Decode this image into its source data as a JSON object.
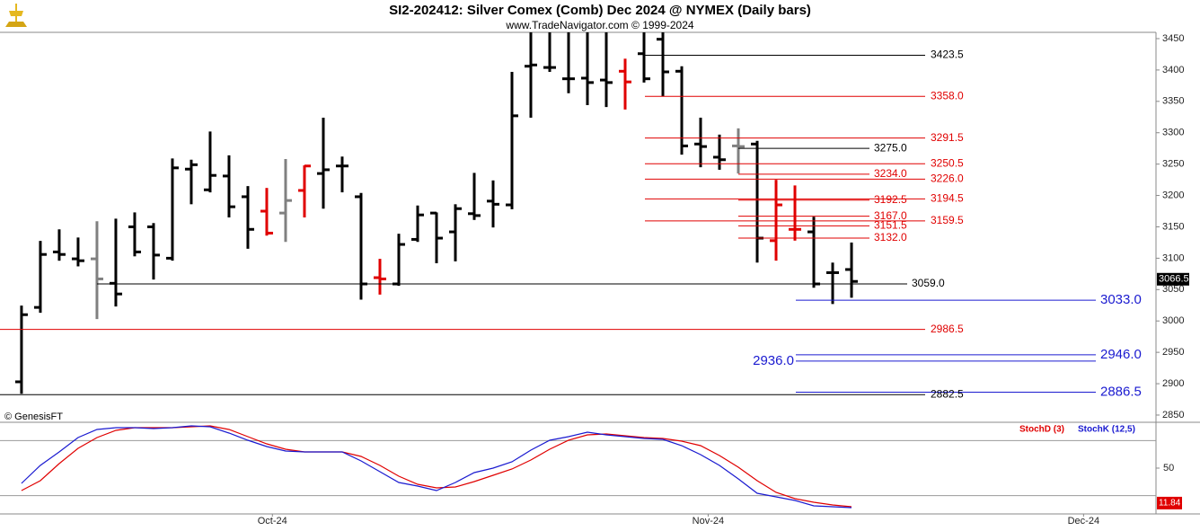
{
  "chart_data": [
    {
      "type": "ohlc",
      "title": "SI2-202412:  Silver Comex (Comb) Dec 2024 @ NYMEX  (Daily bars)",
      "subtitle": "www.TradeNavigator.com © 1999-2024",
      "watermark": "© GenesisFT",
      "xlim": [
        -1.14,
        60.14
      ],
      "ylim": [
        2838.5,
        3460
      ],
      "yticks": [
        2850,
        2900,
        2950,
        3000,
        3050,
        3100,
        3150,
        3200,
        3250,
        3300,
        3350,
        3400,
        3450
      ],
      "open": [
        2903,
        3021.6,
        3110,
        3099,
        3099,
        3060,
        3150,
        3150,
        3100,
        3242,
        3209,
        3231,
        3198,
        3175,
        3172,
        3208,
        3235,
        3247,
        3198,
        3069,
        3059,
        3130,
        3172,
        3142,
        3171,
        3191,
        3185,
        3406,
        3404,
        3386,
        3387,
        3384,
        3398,
        3426,
        3449,
        3398,
        3282,
        3261,
        3279,
        3282,
        3128,
        3146,
        3142,
        3077,
        3082
      ],
      "high": [
        3024.5,
        3127.6,
        3146,
        3133,
        3159,
        3163,
        3173,
        3156,
        3259,
        3257,
        3302,
        3264,
        3215,
        3212,
        3258,
        3248,
        3324,
        3262,
        3204,
        3099,
        3139,
        3184,
        3173,
        3186,
        3236,
        3224,
        3397,
        3460,
        3460,
        3460,
        3460,
        3460,
        3418,
        3460,
        3460,
        3406,
        3324,
        3297,
        3307,
        3287,
        3225,
        3216,
        3166,
        3093,
        3125
      ],
      "low": [
        2884,
        3013,
        3096,
        3087,
        3003,
        3023,
        3103,
        3066,
        3096,
        3186,
        3205,
        3165,
        3115,
        3136,
        3126,
        3165,
        3179,
        3205,
        3034,
        3042,
        3056,
        3126,
        3092,
        3095,
        3161,
        3149,
        3178,
        3324,
        3397,
        3363,
        3344,
        3341,
        3337,
        3380,
        3358,
        3265,
        3245,
        3241,
        3235,
        3093,
        3096,
        3128,
        3053,
        3027,
        3037
      ],
      "close": [
        3010,
        3106,
        3106,
        3096,
        3067,
        3043,
        3110,
        3105,
        3244,
        3249,
        3232,
        3182,
        3146,
        3140,
        3192,
        3247,
        3241,
        3247,
        3059,
        3067,
        3122,
        3169,
        3132,
        3179,
        3168,
        3186,
        3327,
        3408,
        3404,
        3386,
        3380,
        3380,
        3381,
        3386,
        3397,
        3279,
        3278,
        3257,
        3278,
        3132,
        3185,
        3146,
        3059,
        3077,
        3063
      ],
      "colors": [
        "#000",
        "#000",
        "#000",
        "#000",
        "#808080",
        "#000",
        "#000",
        "#000",
        "#000",
        "#000",
        "#000",
        "#000",
        "#000",
        "#e00000",
        "#808080",
        "#e00000",
        "#000",
        "#000",
        "#000",
        "#e00000",
        "#000",
        "#000",
        "#000",
        "#000",
        "#000",
        "#000",
        "#000",
        "#000",
        "#000",
        "#000",
        "#000",
        "#000",
        "#e00000",
        "#000",
        "#000",
        "#000",
        "#000",
        "#000",
        "#808080",
        "#000",
        "#e00000",
        "#e00000",
        "#000",
        "#000",
        "#000"
      ],
      "levels": [
        {
          "value": 3423.5,
          "color": "#000000"
        },
        {
          "value": 3358,
          "label": "3358.0",
          "color": "#e00000"
        },
        {
          "value": 3291.5,
          "color": "#e00000"
        },
        {
          "value": 3275,
          "label": "3275.0",
          "color": "#000000"
        },
        {
          "value": 3250.5,
          "color": "#e00000"
        },
        {
          "value": 3234,
          "label": "3234.0",
          "color": "#e00000"
        },
        {
          "value": 3226,
          "label": "3226.0",
          "color": "#e00000"
        },
        {
          "value": 3194.5,
          "color": "#e00000"
        },
        {
          "value": 3192.5,
          "color": "#e00000"
        },
        {
          "value": 3167,
          "label": "3167.0",
          "color": "#e00000"
        },
        {
          "value": 3159.5,
          "color": "#e00000"
        },
        {
          "value": 3151.5,
          "color": "#e00000"
        },
        {
          "value": 3132,
          "label": "3132.0",
          "color": "#e00000"
        },
        {
          "value": 3059,
          "label": "3059.0",
          "color": "#000000"
        },
        {
          "value": 3033,
          "label": "3033.0",
          "color": "#1a1ad0"
        },
        {
          "value": 2986.5,
          "color": "#e00000"
        },
        {
          "value": 2946,
          "label": "2946.0",
          "color": "#1a1ad0"
        },
        {
          "value": 2936,
          "label": "2936.0",
          "color": "#1a1ad0"
        },
        {
          "value": 2886.5,
          "color": "#1a1ad0"
        },
        {
          "value": 2882.5,
          "color": "#000000"
        }
      ],
      "last_value": 3066.5
    },
    {
      "type": "line",
      "xlim": [
        -1.14,
        60.14
      ],
      "xticks": [
        {
          "value": 13.3,
          "label": "Oct-24"
        },
        {
          "value": 36.4,
          "label": "Nov-24"
        },
        {
          "value": 56.3,
          "label": "Dec-24"
        }
      ],
      "ylim": [
        0,
        100
      ],
      "yticks": [
        50
      ],
      "hlines": [
        20,
        80
      ],
      "series": [
        {
          "name": "StochD (3)",
          "color": "#e00000",
          "values": [
            25.5,
            36.3,
            54.9,
            71.6,
            83.3,
            91.2,
            94.1,
            94.1,
            94.1,
            95.1,
            96.1,
            92.2,
            84.3,
            76.5,
            70.6,
            67.6,
            67.6,
            67.6,
            62.7,
            52.9,
            41.2,
            32.4,
            28.4,
            29.4,
            35.3,
            42.2,
            49,
            58.8,
            70.6,
            80.4,
            86.3,
            87.3,
            85.3,
            83.3,
            82.4,
            79.4,
            74.5,
            63.7,
            51,
            36.3,
            23.5,
            16.7,
            12.7,
            9.8,
            7.8
          ]
        },
        {
          "name": "StochK (12,5)",
          "color": "#1a1ad0",
          "values": [
            33.3,
            52.9,
            67.6,
            83.3,
            92.2,
            94.1,
            94.1,
            93.1,
            94.1,
            96.1,
            95.1,
            88.2,
            80.4,
            73.5,
            68.6,
            67.6,
            67.6,
            67.6,
            57.8,
            46.1,
            34.3,
            30.4,
            25.5,
            34.3,
            45.1,
            50,
            56.9,
            69.6,
            80.4,
            84.3,
            89.2,
            86.3,
            84.3,
            82.4,
            81.4,
            74.5,
            64.7,
            52.9,
            38.2,
            22.5,
            18.6,
            14.7,
            8.8,
            7.8,
            6.9
          ]
        }
      ],
      "last_value": 11.84
    }
  ]
}
